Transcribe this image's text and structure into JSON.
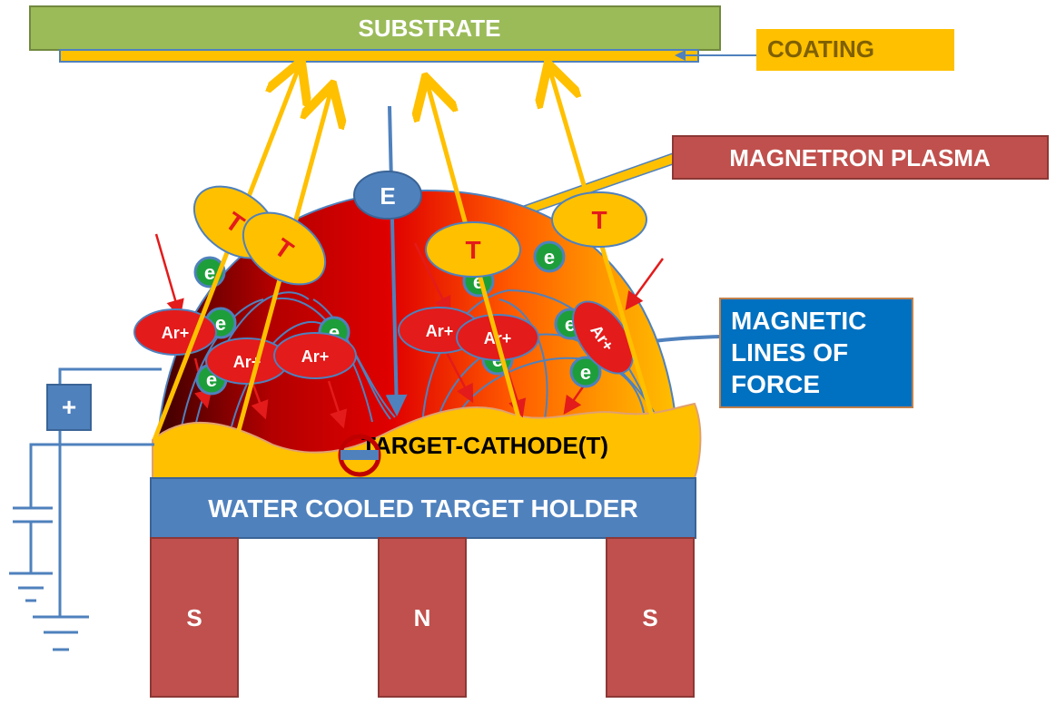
{
  "substrate": {
    "label": "SUBSTRATE"
  },
  "coating": {
    "label": "COATING"
  },
  "plasma_callout": {
    "label": "MAGNETRON PLASMA"
  },
  "field_callout": {
    "lines": [
      "MAGNETIC",
      "LINES OF",
      "FORCE"
    ]
  },
  "electric_field": {
    "label": "E"
  },
  "target": {
    "label": "TARGET-CATHODE(T)"
  },
  "holder": {
    "label": "WATER COOLED TARGET HOLDER"
  },
  "magnets": {
    "left": "S",
    "center": "N",
    "right": "S"
  },
  "power_supply": {
    "symbol": "+"
  },
  "sputtered_atom": {
    "label": "T"
  },
  "electron": {
    "label": "e"
  },
  "argon_ion": {
    "label": "Ar+"
  },
  "colors": {
    "substrate": "#9bbb59",
    "coating": "#ffc000",
    "callout_red": "#c0504d",
    "callout_blue": "#0070c0",
    "holder": "#4f81bd",
    "magnet": "#c0504d",
    "wire": "#4f81bd",
    "ion": "#e31b1b",
    "electron": "#1e9e3a"
  }
}
